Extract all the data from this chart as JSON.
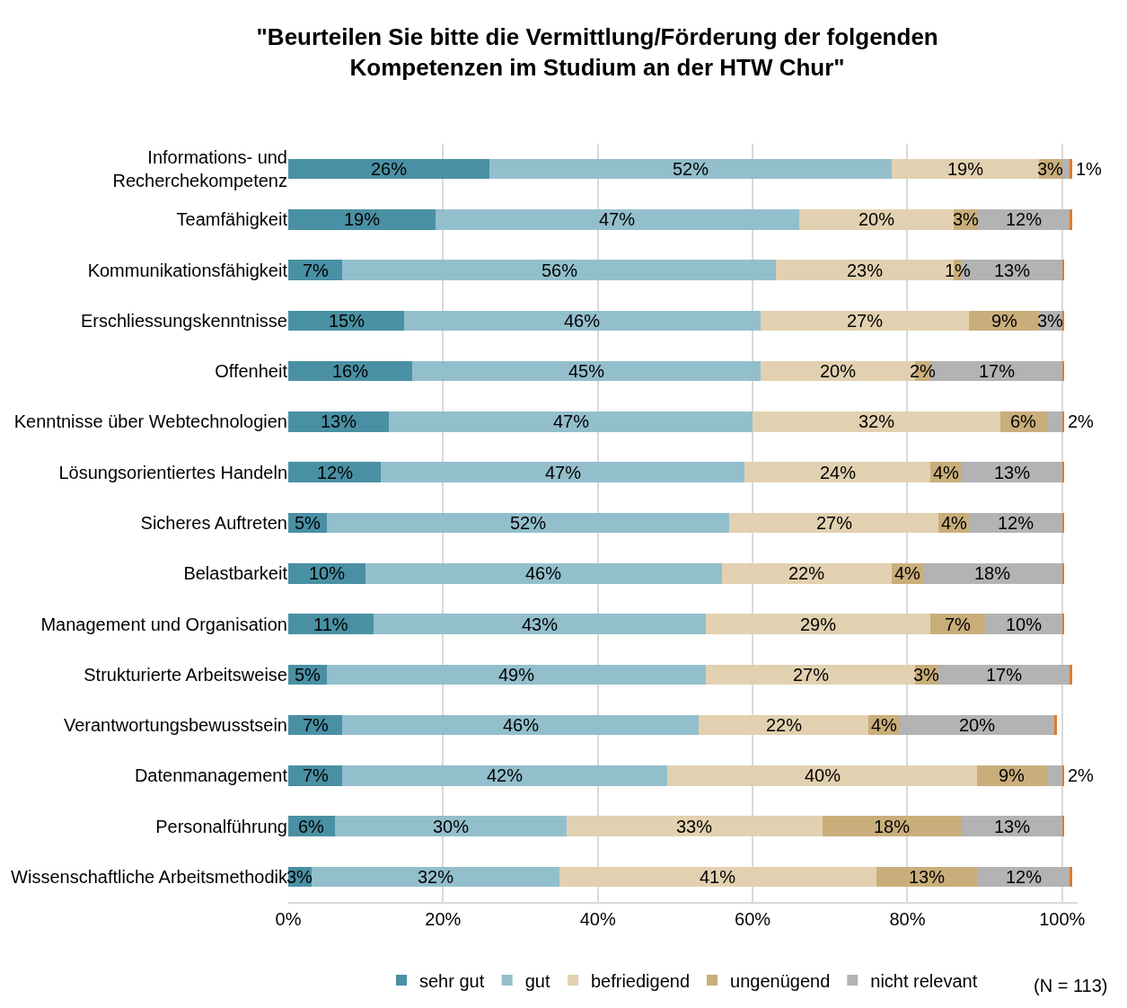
{
  "chart_data": {
    "type": "bar",
    "orientation": "horizontal",
    "stacked": true,
    "title": "\"Beurteilen Sie bitte die Vermittlung/Förderung der folgenden Kompetenzen im Studium an der HTW Chur\"",
    "categories": [
      "Informations- und Recherchekompetenz",
      "Teamfähigkeit",
      "Kommunikationsfähigkeit",
      "Erschliessungskenntnisse",
      "Offenheit",
      "Kenntnisse über Webtechnologien",
      "Lösungsorientiertes Handeln",
      "Sicheres Auftreten",
      "Belastbarkeit",
      "Management und Organisation",
      "Strukturierte Arbeitsweise",
      "Verantwortungsbewusstsein",
      "Datenmanagement",
      "Personalführung",
      "Wissenschaftliche Arbeitsmethodik"
    ],
    "series": [
      {
        "name": "sehr gut",
        "color": "#4a90a4",
        "values": [
          26,
          19,
          7,
          15,
          16,
          13,
          12,
          5,
          10,
          11,
          5,
          7,
          7,
          6,
          3
        ],
        "value_labels": [
          "26%",
          "19%",
          "7%",
          "15%",
          "16%",
          "13%",
          "12%",
          "5%",
          "10%",
          "11%",
          "5%",
          "7%",
          "7%",
          "6%",
          "3%"
        ]
      },
      {
        "name": "gut",
        "color": "#93bfcc",
        "values": [
          52,
          47,
          56,
          46,
          45,
          47,
          47,
          52,
          46,
          43,
          49,
          46,
          42,
          30,
          32
        ],
        "value_labels": [
          "52%",
          "47%",
          "56%",
          "46%",
          "45%",
          "47%",
          "47%",
          "52%",
          "46%",
          "43%",
          "49%",
          "46%",
          "42%",
          "30%",
          "32%"
        ]
      },
      {
        "name": "befriedigend",
        "color": "#e2d1b0",
        "values": [
          19,
          20,
          23,
          27,
          20,
          32,
          24,
          27,
          22,
          29,
          27,
          22,
          40,
          33,
          41
        ],
        "value_labels": [
          "19%",
          "20%",
          "23%",
          "27%",
          "20%",
          "32%",
          "24%",
          "27%",
          "22%",
          "29%",
          "27%",
          "22%",
          "40%",
          "33%",
          "41%"
        ]
      },
      {
        "name": "ungenügend",
        "color": "#c9ae7b",
        "values": [
          3,
          3,
          1,
          9,
          2,
          6,
          4,
          4,
          4,
          7,
          3,
          4,
          9,
          18,
          13
        ],
        "value_labels": [
          "3%",
          "3%",
          "1%",
          "9%",
          "2%",
          "6%",
          "4%",
          "4%",
          "4%",
          "7%",
          "3%",
          "4%",
          "9%",
          "18%",
          "13%"
        ]
      },
      {
        "name": "nicht relevant",
        "color": "#b3b3b3",
        "values": [
          1,
          12,
          13,
          3,
          17,
          2,
          13,
          12,
          18,
          10,
          17,
          20,
          2,
          13,
          12
        ],
        "value_labels": [
          "1%",
          "12%",
          "13%",
          "3%",
          "17%",
          "2%",
          "13%",
          "12%",
          "18%",
          "10%",
          "17%",
          "20%",
          "2%",
          "13%",
          "12%"
        ]
      },
      {
        "color": "#e07b2a",
        "values": [
          0.3,
          0.3,
          0.3,
          0.3,
          0.3,
          0.3,
          0.3,
          0.3,
          0.3,
          0.3,
          0.3,
          0.3,
          0.3,
          0.3,
          0.3
        ]
      }
    ],
    "xlim": [
      0,
      102
    ],
    "xticks": [
      {
        "value": 0,
        "label": "0%"
      },
      {
        "value": 20,
        "label": "20%"
      },
      {
        "value": 40,
        "label": "40%"
      },
      {
        "value": 60,
        "label": "60%"
      },
      {
        "value": 80,
        "label": "80%"
      },
      {
        "value": 100,
        "label": "100%"
      }
    ],
    "grid": "x",
    "legend": "bottom",
    "annotations": [
      "(N = 113)"
    ]
  }
}
